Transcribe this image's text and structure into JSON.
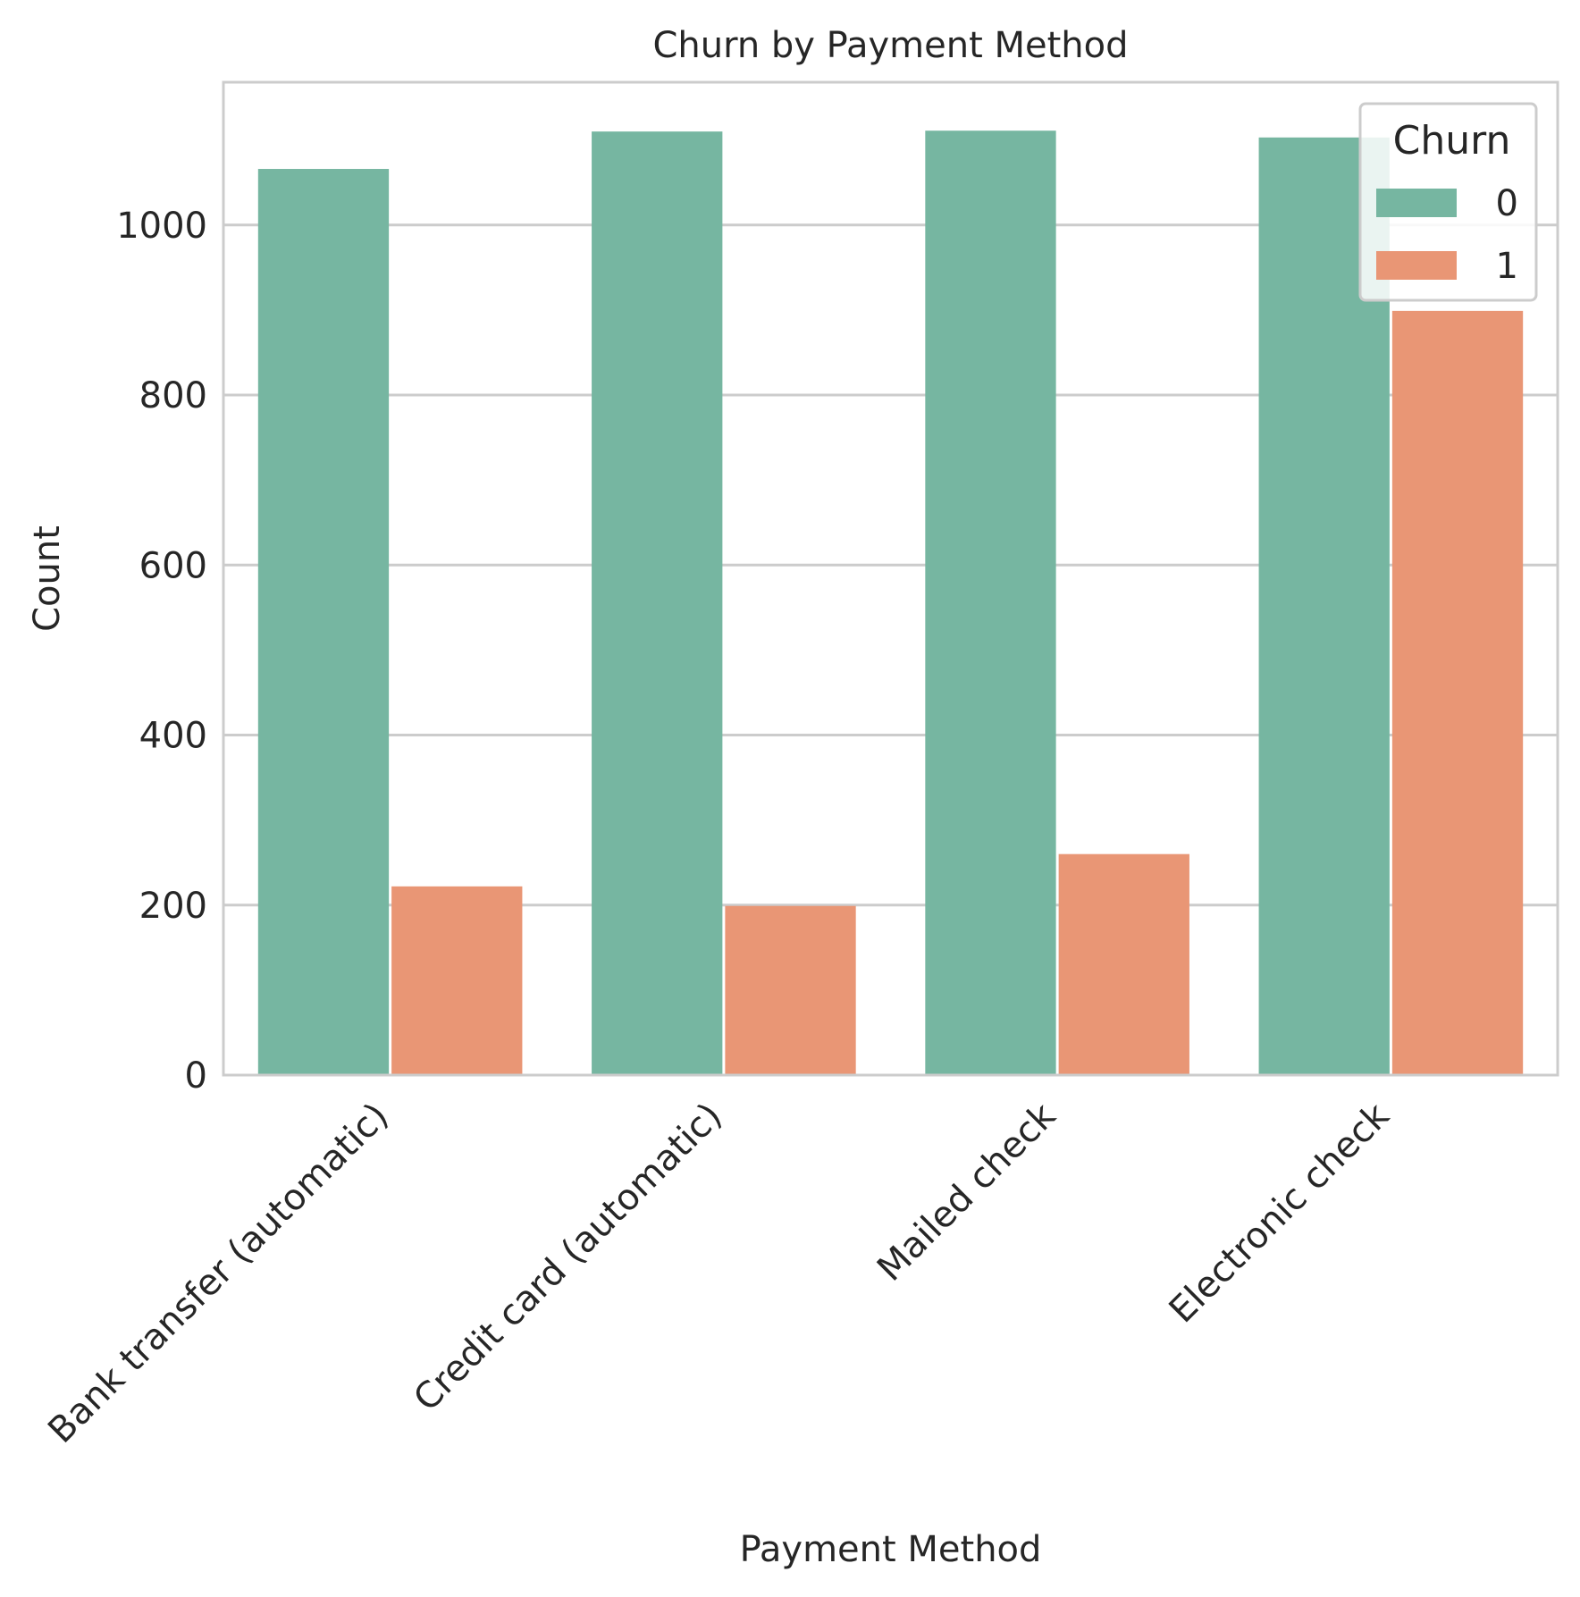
{
  "chart_data": {
    "type": "bar",
    "title": "Churn by Payment Method",
    "xlabel": "Payment Method",
    "ylabel": "Count",
    "categories": [
      "Bank transfer (automatic)",
      "Credit card (automatic)",
      "Mailed check",
      "Electronic check"
    ],
    "series": [
      {
        "name": "0",
        "values": [
          1066,
          1110,
          1111,
          1103
        ],
        "color": "#76b6a1"
      },
      {
        "name": "1",
        "values": [
          222,
          199,
          260,
          899
        ],
        "color": "#e99675"
      }
    ],
    "ylim": [
      0,
      1168
    ],
    "yticks": [
      0,
      200,
      400,
      600,
      800,
      1000
    ],
    "legend": {
      "title": "Churn",
      "placement": "top-right"
    },
    "grid": "horizontal",
    "tick_label_rotation": -45
  }
}
